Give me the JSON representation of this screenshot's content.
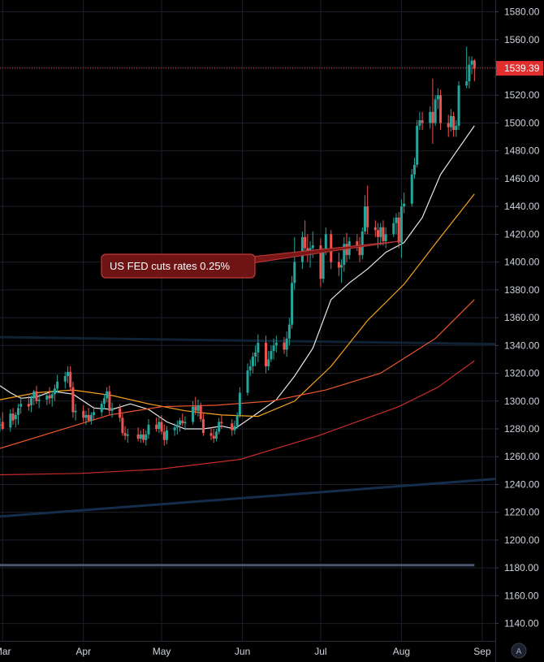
{
  "chart_data": {
    "type": "candlestick",
    "y_axis": {
      "ticks": [
        "1580.00",
        "1560.00",
        "1540.00",
        "1520.00",
        "1500.00",
        "1480.00",
        "1460.00",
        "1440.00",
        "1420.00",
        "1400.00",
        "1380.00",
        "1360.00",
        "1340.00",
        "1320.00",
        "1300.00",
        "1280.00",
        "1260.00",
        "1240.00",
        "1220.00",
        "1200.00",
        "1180.00",
        "1160.00",
        "1140.00"
      ],
      "ylim": [
        1127.5,
        1588.5
      ],
      "position": "right"
    },
    "x_axis": {
      "labels": [
        "Mar",
        "Apr",
        "May",
        "Jun",
        "Jul",
        "Aug",
        "Sep"
      ],
      "label_dates": [
        "2019-03-01",
        "2019-04-01",
        "2019-05-01",
        "2019-06-01",
        "2019-07-01",
        "2019-08-01",
        "2019-09-01"
      ],
      "range": [
        "2019-02-28",
        "2019-09-06"
      ]
    },
    "last_price": {
      "value": 1539.39,
      "label": "1539.39",
      "color": "#e02d2d"
    },
    "annotation": {
      "text": "US FED cuts rates 0.25%",
      "date": "2019-07-31",
      "price": 1415
    },
    "moving_averages": [
      {
        "color": "#e8e8e8",
        "points": [
          [
            "2019-02-28",
            1311
          ],
          [
            "2019-03-04",
            1306
          ],
          [
            "2019-03-08",
            1302
          ],
          [
            "2019-03-14",
            1303
          ],
          [
            "2019-03-20",
            1307
          ],
          [
            "2019-03-28",
            1305
          ],
          [
            "2019-04-05",
            1295
          ],
          [
            "2019-04-12",
            1294
          ],
          [
            "2019-04-19",
            1298
          ],
          [
            "2019-04-26",
            1294
          ],
          [
            "2019-05-03",
            1285
          ],
          [
            "2019-05-10",
            1280
          ],
          [
            "2019-05-17",
            1280
          ],
          [
            "2019-05-24",
            1282
          ],
          [
            "2019-05-29",
            1280
          ],
          [
            "2019-06-05",
            1289
          ],
          [
            "2019-06-14",
            1301
          ],
          [
            "2019-06-21",
            1318
          ],
          [
            "2019-06-28",
            1338
          ],
          [
            "2019-07-05",
            1373
          ],
          [
            "2019-07-12",
            1385
          ],
          [
            "2019-07-19",
            1395
          ],
          [
            "2019-07-26",
            1407
          ],
          [
            "2019-08-02",
            1414
          ],
          [
            "2019-08-09",
            1432
          ],
          [
            "2019-08-16",
            1463
          ],
          [
            "2019-08-23",
            1482
          ],
          [
            "2019-08-29",
            1498
          ]
        ]
      },
      {
        "color": "#f7a21b",
        "points": [
          [
            "2019-02-28",
            1301
          ],
          [
            "2019-03-14",
            1306
          ],
          [
            "2019-03-28",
            1308
          ],
          [
            "2019-04-12",
            1304
          ],
          [
            "2019-04-26",
            1298
          ],
          [
            "2019-05-10",
            1293
          ],
          [
            "2019-05-24",
            1290
          ],
          [
            "2019-06-07",
            1289
          ],
          [
            "2019-06-21",
            1300
          ],
          [
            "2019-07-05",
            1325
          ],
          [
            "2019-07-19",
            1358
          ],
          [
            "2019-08-02",
            1384
          ],
          [
            "2019-08-16",
            1418
          ],
          [
            "2019-08-29",
            1449
          ]
        ]
      },
      {
        "color": "#f0562c",
        "points": [
          [
            "2019-02-28",
            1266
          ],
          [
            "2019-03-21",
            1278
          ],
          [
            "2019-04-11",
            1290
          ],
          [
            "2019-05-01",
            1296
          ],
          [
            "2019-05-22",
            1297
          ],
          [
            "2019-06-12",
            1300
          ],
          [
            "2019-07-03",
            1308
          ],
          [
            "2019-07-24",
            1320
          ],
          [
            "2019-08-14",
            1345
          ],
          [
            "2019-08-29",
            1373
          ]
        ]
      },
      {
        "color": "#c92a2a",
        "points": [
          [
            "2019-02-28",
            1247
          ],
          [
            "2019-03-31",
            1248
          ],
          [
            "2019-04-30",
            1251
          ],
          [
            "2019-05-31",
            1258
          ],
          [
            "2019-06-30",
            1275
          ],
          [
            "2019-07-31",
            1296
          ],
          [
            "2019-08-15",
            1310
          ],
          [
            "2019-08-29",
            1329
          ]
        ]
      }
    ],
    "trend_lines": [
      {
        "color": "#0e2233",
        "from": [
          "2019-02-28",
          1346
        ],
        "to": [
          "2019-09-06",
          1341
        ]
      },
      {
        "color": "#132d4a",
        "from": [
          "2019-02-28",
          1217
        ],
        "to": [
          "2019-09-06",
          1244
        ]
      },
      {
        "color": "#4a5570",
        "from": [
          "2019-02-28",
          1182
        ],
        "to": [
          "2019-08-29",
          1182
        ]
      }
    ],
    "candles": [
      [
        "2019-02-28",
        1283,
        1288,
        1278,
        1283
      ],
      [
        "2019-03-01",
        1285,
        1292,
        1279,
        1280
      ],
      [
        "2019-03-04",
        1281,
        1294,
        1278,
        1291
      ],
      [
        "2019-03-05",
        1291,
        1295,
        1283,
        1286
      ],
      [
        "2019-03-06",
        1287,
        1292,
        1281,
        1290
      ],
      [
        "2019-03-07",
        1290,
        1298,
        1283,
        1295
      ],
      [
        "2019-03-08",
        1296,
        1303,
        1291,
        1298
      ],
      [
        "2019-03-11",
        1298,
        1304,
        1293,
        1296
      ],
      [
        "2019-03-12",
        1297,
        1304,
        1292,
        1302
      ],
      [
        "2019-03-13",
        1302,
        1308,
        1297,
        1307
      ],
      [
        "2019-03-14",
        1307,
        1311,
        1298,
        1300
      ],
      [
        "2019-03-15",
        1300,
        1305,
        1295,
        1301
      ],
      [
        "2019-03-18",
        1301,
        1307,
        1297,
        1304
      ],
      [
        "2019-03-19",
        1304,
        1310,
        1298,
        1302
      ],
      [
        "2019-03-20",
        1302,
        1307,
        1296,
        1305
      ],
      [
        "2019-03-21",
        1305,
        1312,
        1300,
        1309
      ],
      [
        "2019-03-22",
        1309,
        1319,
        1306,
        1314
      ],
      [
        "2019-03-25",
        1314,
        1321,
        1309,
        1318
      ],
      [
        "2019-03-26",
        1318,
        1325,
        1313,
        1321
      ],
      [
        "2019-03-27",
        1321,
        1325,
        1307,
        1310
      ],
      [
        "2019-03-28",
        1310,
        1314,
        1288,
        1292
      ],
      [
        "2019-03-29",
        1292,
        1298,
        1286,
        1293
      ],
      [
        "2019-04-01",
        1293,
        1297,
        1285,
        1288
      ],
      [
        "2019-04-02",
        1288,
        1293,
        1283,
        1290
      ],
      [
        "2019-04-03",
        1290,
        1295,
        1285,
        1286
      ],
      [
        "2019-04-04",
        1286,
        1292,
        1283,
        1290
      ],
      [
        "2019-04-05",
        1290,
        1296,
        1286,
        1292
      ],
      [
        "2019-04-08",
        1292,
        1300,
        1289,
        1298
      ],
      [
        "2019-04-09",
        1298,
        1305,
        1294,
        1302
      ],
      [
        "2019-04-10",
        1302,
        1310,
        1299,
        1307
      ],
      [
        "2019-04-11",
        1307,
        1311,
        1290,
        1293
      ],
      [
        "2019-04-12",
        1293,
        1299,
        1288,
        1295
      ],
      [
        "2019-04-15",
        1295,
        1298,
        1285,
        1288
      ],
      [
        "2019-04-16",
        1288,
        1291,
        1275,
        1277
      ],
      [
        "2019-04-17",
        1277,
        1282,
        1272,
        1275
      ],
      [
        "2019-04-18",
        1275,
        1280,
        1270,
        1276
      ],
      [
        "2019-04-22",
        1276,
        1281,
        1271,
        1273
      ],
      [
        "2019-04-23",
        1273,
        1279,
        1270,
        1276
      ],
      [
        "2019-04-24",
        1276,
        1280,
        1270,
        1272
      ],
      [
        "2019-04-25",
        1272,
        1279,
        1268,
        1276
      ],
      [
        "2019-04-26",
        1276,
        1287,
        1273,
        1283
      ],
      [
        "2019-04-29",
        1283,
        1288,
        1278,
        1280
      ],
      [
        "2019-04-30",
        1280,
        1289,
        1277,
        1285
      ],
      [
        "2019-05-01",
        1285,
        1290,
        1276,
        1278
      ],
      [
        "2019-05-02",
        1278,
        1283,
        1268,
        1272
      ],
      [
        "2019-05-03",
        1272,
        1282,
        1269,
        1279
      ],
      [
        "2019-05-06",
        1279,
        1284,
        1275,
        1281
      ],
      [
        "2019-05-07",
        1281,
        1286,
        1276,
        1283
      ],
      [
        "2019-05-08",
        1283,
        1288,
        1278,
        1286
      ],
      [
        "2019-05-09",
        1286,
        1291,
        1282,
        1284
      ],
      [
        "2019-05-10",
        1284,
        1289,
        1279,
        1285
      ],
      [
        "2019-05-13",
        1285,
        1300,
        1283,
        1296
      ],
      [
        "2019-05-14",
        1296,
        1303,
        1290,
        1293
      ],
      [
        "2019-05-15",
        1293,
        1301,
        1289,
        1297
      ],
      [
        "2019-05-16",
        1297,
        1299,
        1285,
        1287
      ],
      [
        "2019-05-17",
        1287,
        1291,
        1275,
        1277
      ],
      [
        "2019-05-20",
        1277,
        1281,
        1272,
        1275
      ],
      [
        "2019-05-21",
        1275,
        1280,
        1270,
        1273
      ],
      [
        "2019-05-22",
        1273,
        1280,
        1271,
        1278
      ],
      [
        "2019-05-23",
        1278,
        1288,
        1276,
        1285
      ],
      [
        "2019-05-24",
        1285,
        1290,
        1280,
        1284
      ],
      [
        "2019-05-28",
        1284,
        1287,
        1275,
        1279
      ],
      [
        "2019-05-29",
        1279,
        1286,
        1276,
        1282
      ],
      [
        "2019-05-30",
        1282,
        1292,
        1280,
        1290
      ],
      [
        "2019-05-31",
        1290,
        1310,
        1288,
        1306
      ],
      [
        "2019-06-03",
        1306,
        1327,
        1304,
        1322
      ],
      [
        "2019-06-04",
        1322,
        1330,
        1318,
        1325
      ],
      [
        "2019-06-05",
        1325,
        1335,
        1320,
        1332
      ],
      [
        "2019-06-06",
        1332,
        1340,
        1325,
        1335
      ],
      [
        "2019-06-07",
        1335,
        1348,
        1328,
        1342
      ],
      [
        "2019-06-10",
        1342,
        1347,
        1320,
        1325
      ],
      [
        "2019-06-11",
        1325,
        1336,
        1322,
        1330
      ],
      [
        "2019-06-12",
        1330,
        1340,
        1328,
        1336
      ],
      [
        "2019-06-13",
        1336,
        1345,
        1330,
        1340
      ],
      [
        "2019-06-14",
        1340,
        1347,
        1335,
        1342
      ],
      [
        "2019-06-17",
        1342,
        1346,
        1334,
        1337
      ],
      [
        "2019-06-18",
        1337,
        1350,
        1332,
        1345
      ],
      [
        "2019-06-19",
        1345,
        1360,
        1340,
        1355
      ],
      [
        "2019-06-20",
        1355,
        1390,
        1352,
        1385
      ],
      [
        "2019-06-21",
        1385,
        1418,
        1380,
        1400
      ],
      [
        "2019-06-24",
        1400,
        1422,
        1395,
        1418
      ],
      [
        "2019-06-25",
        1418,
        1430,
        1405,
        1410
      ],
      [
        "2019-06-26",
        1410,
        1420,
        1400,
        1405
      ],
      [
        "2019-06-27",
        1405,
        1415,
        1396,
        1410
      ],
      [
        "2019-06-28",
        1410,
        1422,
        1403,
        1412
      ],
      [
        "2019-07-01",
        1412,
        1417,
        1382,
        1388
      ],
      [
        "2019-07-02",
        1388,
        1410,
        1385,
        1408
      ],
      [
        "2019-07-03",
        1408,
        1425,
        1405,
        1420
      ],
      [
        "2019-07-05",
        1420,
        1423,
        1395,
        1400
      ],
      [
        "2019-07-08",
        1400,
        1407,
        1390,
        1396
      ],
      [
        "2019-07-09",
        1396,
        1402,
        1385,
        1398
      ],
      [
        "2019-07-10",
        1398,
        1418,
        1393,
        1413
      ],
      [
        "2019-07-11",
        1413,
        1421,
        1400,
        1405
      ],
      [
        "2019-07-12",
        1405,
        1418,
        1402,
        1415
      ],
      [
        "2019-07-15",
        1415,
        1420,
        1408,
        1412
      ],
      [
        "2019-07-16",
        1412,
        1418,
        1400,
        1405
      ],
      [
        "2019-07-17",
        1405,
        1425,
        1402,
        1422
      ],
      [
        "2019-07-18",
        1422,
        1448,
        1420,
        1440
      ],
      [
        "2019-07-19",
        1440,
        1455,
        1420,
        1425
      ],
      [
        "2019-07-22",
        1425,
        1430,
        1418,
        1423
      ],
      [
        "2019-07-23",
        1423,
        1428,
        1410,
        1418
      ],
      [
        "2019-07-24",
        1418,
        1428,
        1412,
        1425
      ],
      [
        "2019-07-25",
        1425,
        1430,
        1412,
        1415
      ],
      [
        "2019-07-26",
        1415,
        1425,
        1410,
        1420
      ],
      [
        "2019-07-29",
        1420,
        1432,
        1418,
        1428
      ],
      [
        "2019-07-30",
        1428,
        1435,
        1420,
        1432
      ],
      [
        "2019-07-31",
        1432,
        1436,
        1410,
        1414
      ],
      [
        "2019-08-01",
        1414,
        1445,
        1403,
        1440
      ],
      [
        "2019-08-02",
        1440,
        1450,
        1435,
        1442
      ],
      [
        "2019-08-05",
        1442,
        1467,
        1440,
        1463
      ],
      [
        "2019-08-06",
        1463,
        1475,
        1460,
        1470
      ],
      [
        "2019-08-07",
        1470,
        1502,
        1468,
        1498
      ],
      [
        "2019-08-08",
        1498,
        1508,
        1495,
        1502
      ],
      [
        "2019-08-09",
        1502,
        1508,
        1495,
        1500
      ],
      [
        "2019-08-12",
        1500,
        1512,
        1496,
        1508
      ],
      [
        "2019-08-13",
        1508,
        1532,
        1485,
        1500
      ],
      [
        "2019-08-14",
        1500,
        1520,
        1498,
        1517
      ],
      [
        "2019-08-15",
        1517,
        1525,
        1510,
        1520
      ],
      [
        "2019-08-16",
        1520,
        1524,
        1495,
        1500
      ],
      [
        "2019-08-19",
        1500,
        1506,
        1490,
        1497
      ],
      [
        "2019-08-20",
        1497,
        1510,
        1494,
        1505
      ],
      [
        "2019-08-21",
        1505,
        1508,
        1490,
        1495
      ],
      [
        "2019-08-22",
        1495,
        1502,
        1490,
        1498
      ],
      [
        "2019-08-23",
        1498,
        1530,
        1495,
        1527
      ],
      [
        "2019-08-26",
        1527,
        1555,
        1525,
        1530
      ],
      [
        "2019-08-27",
        1530,
        1548,
        1525,
        1542
      ],
      [
        "2019-08-28",
        1542,
        1548,
        1535,
        1545
      ],
      [
        "2019-08-29",
        1545,
        1546,
        1530,
        1539
      ]
    ],
    "colors": {
      "up": "#26a69a",
      "down": "#ef5350",
      "background": "#000000",
      "grid": "#1b1f2a",
      "axis_text": "#cfd3dc"
    },
    "grid": true,
    "scale_button": "A"
  }
}
